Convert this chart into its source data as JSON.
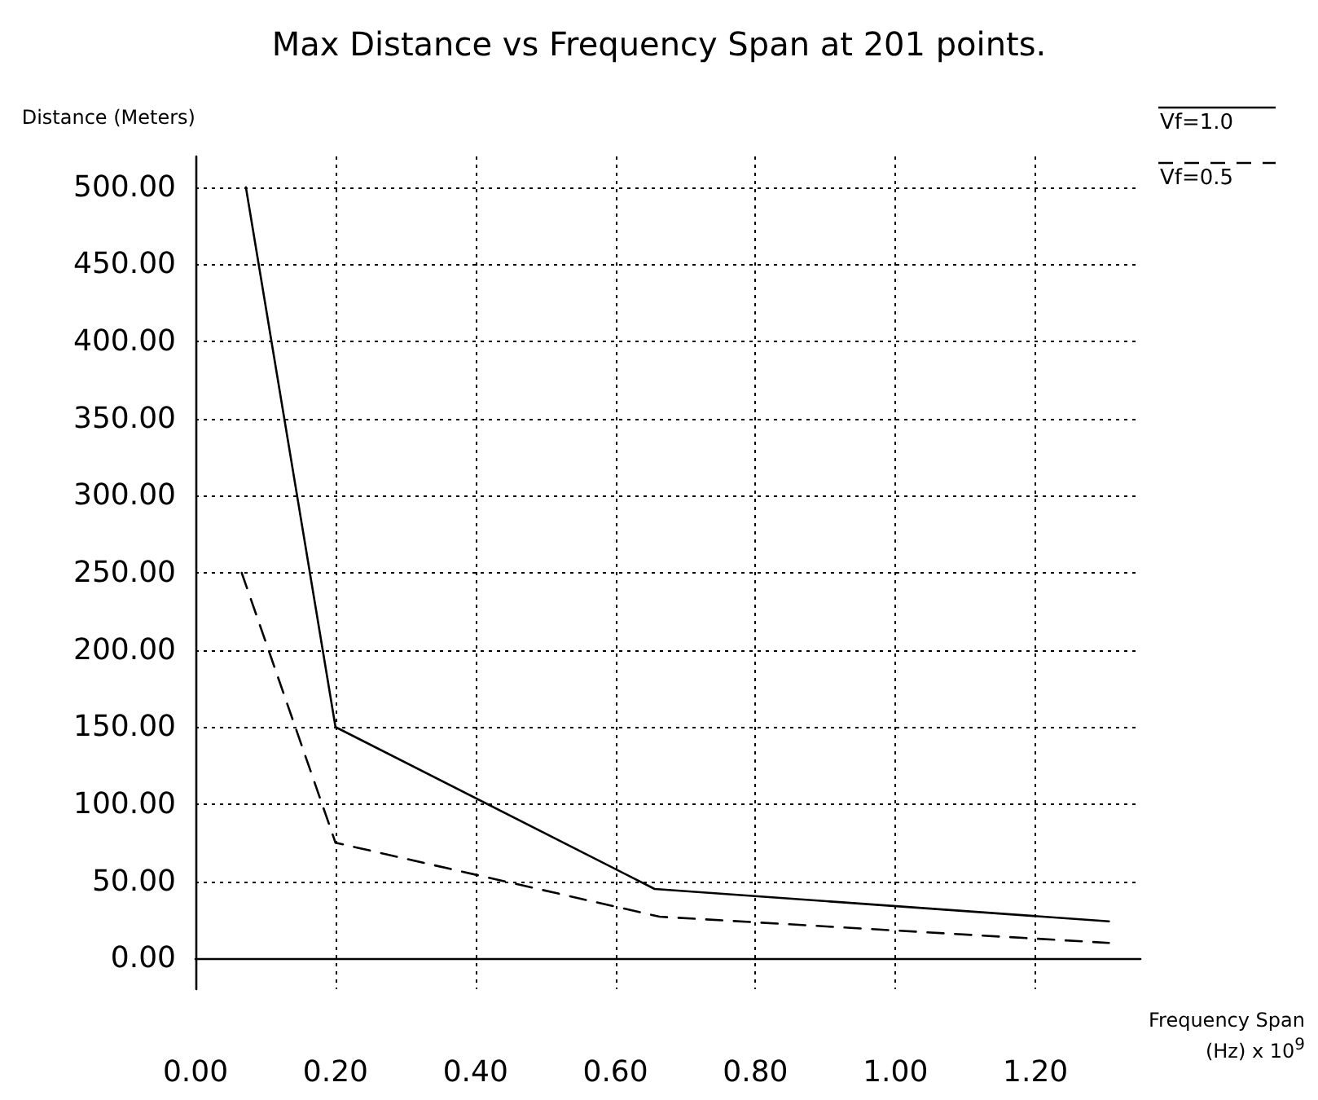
{
  "chart_data": {
    "type": "line",
    "title": "Max Distance vs Frequency Span at 201 points.",
    "xlabel": "Frequency Span\n(Hz) x 10$^{9}$",
    "ylabel": "Distance (Meters)",
    "series": [
      {
        "name": "Vf=1.0",
        "color": "#000000",
        "line_style": "solid",
        "x": [
          0.072,
          0.2,
          0.656,
          1.305
        ],
        "values": [
          500,
          150,
          45,
          24
        ]
      },
      {
        "name": "Vf=0.5",
        "color": "#000000",
        "line_style": "dashed",
        "x": [
          0.066,
          0.2,
          0.663,
          1.305
        ],
        "values": [
          250,
          75,
          27,
          10
        ]
      }
    ],
    "xlim": [
      0,
      1.35
    ],
    "xticks": [
      {
        "value": 0,
        "label": "0.00"
      },
      {
        "value": 0.2,
        "label": "0.20"
      },
      {
        "value": 0.4,
        "label": "0.40"
      },
      {
        "value": 0.6,
        "label": "0.60"
      },
      {
        "value": 0.8,
        "label": "0.80"
      },
      {
        "value": 1.0,
        "label": "1.00"
      },
      {
        "value": 1.2,
        "label": "1.20"
      }
    ],
    "ylim": [
      -20,
      520
    ],
    "yticks": [
      {
        "value": 0,
        "label": "0.00"
      },
      {
        "value": 50,
        "label": "50.00"
      },
      {
        "value": 100,
        "label": "100.00"
      },
      {
        "value": 150,
        "label": "150.00"
      },
      {
        "value": 200,
        "label": "200.00"
      },
      {
        "value": 250,
        "label": "250.00"
      },
      {
        "value": 300,
        "label": "300.00"
      },
      {
        "value": 350,
        "label": "350.00"
      },
      {
        "value": 400,
        "label": "400.00"
      },
      {
        "value": 450,
        "label": "450.00"
      },
      {
        "value": 500,
        "label": "500.00"
      }
    ],
    "grid": true,
    "legend": "top right",
    "marker": "none"
  }
}
